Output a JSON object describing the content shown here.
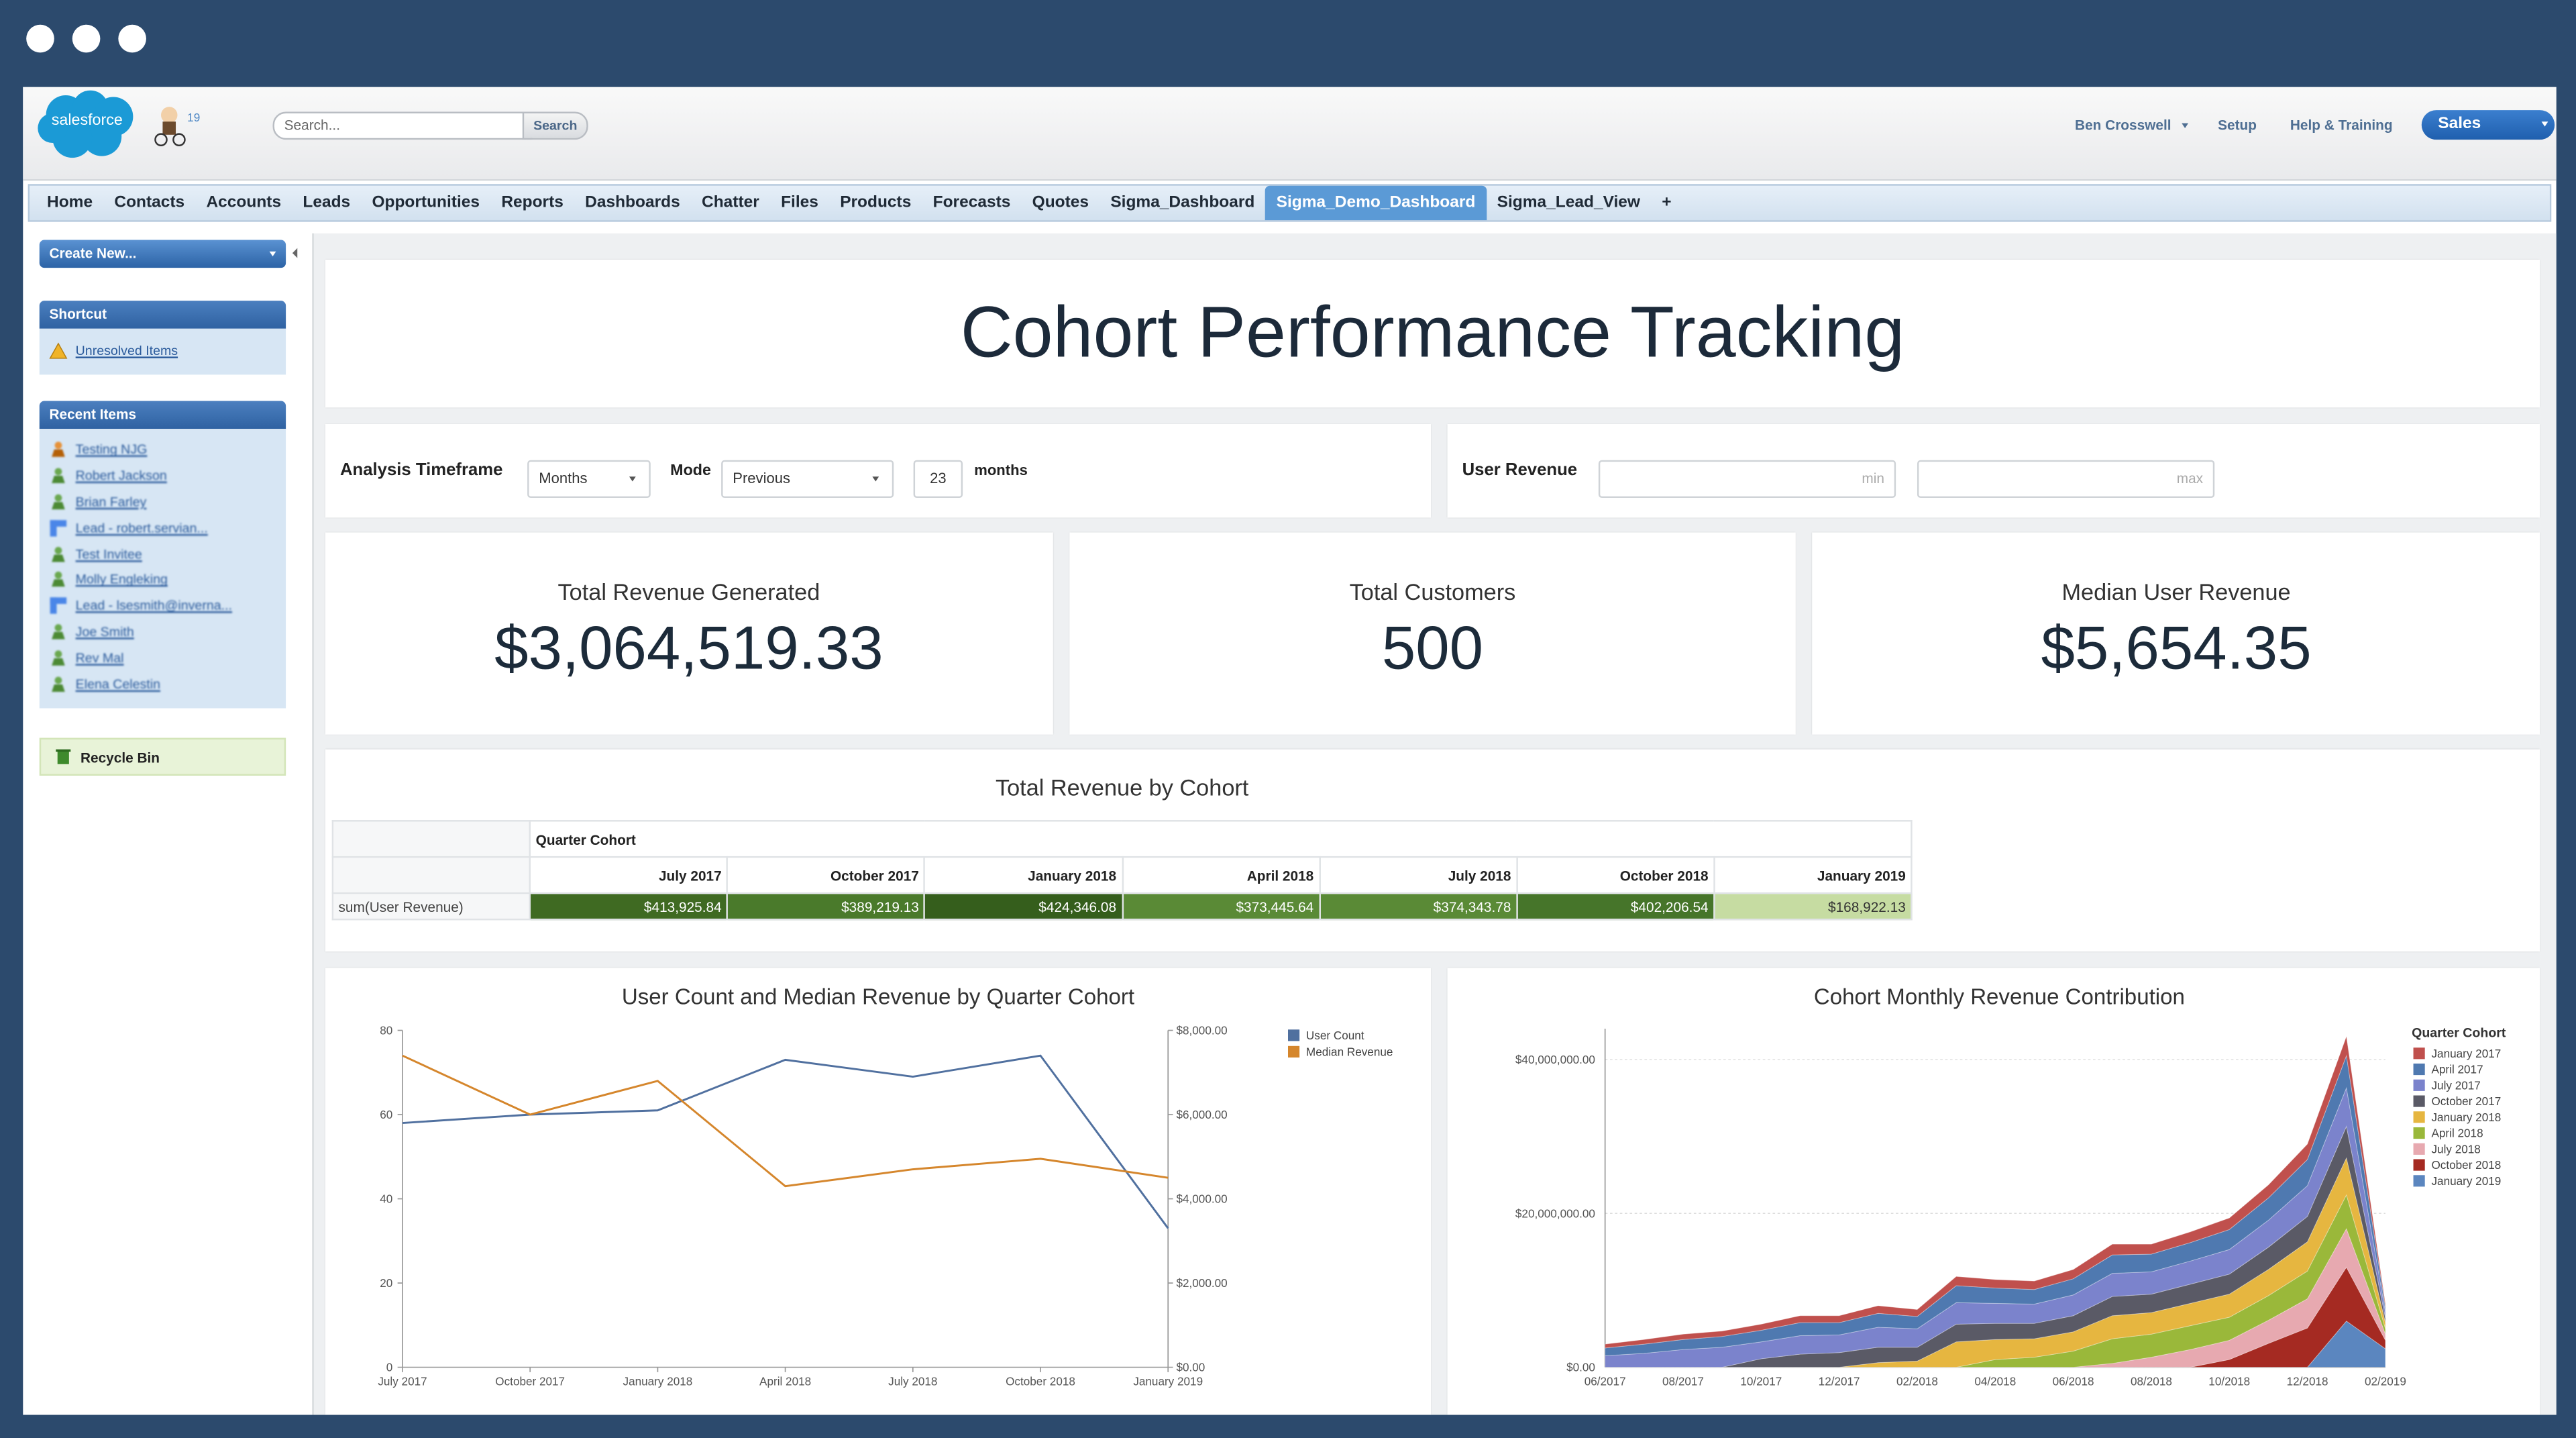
{
  "header": {
    "logo": "salesforce",
    "badge": "19",
    "search_placeholder": "Search...",
    "search_button": "Search",
    "user": "Ben Crosswell",
    "links": [
      "Setup",
      "Help & Training"
    ],
    "app": "Sales"
  },
  "tabs": {
    "items": [
      "Home",
      "Contacts",
      "Accounts",
      "Leads",
      "Opportunities",
      "Reports",
      "Dashboards",
      "Chatter",
      "Files",
      "Products",
      "Forecasts",
      "Quotes",
      "Sigma_Dashboard",
      "Sigma_Demo_Dashboard",
      "Sigma_Lead_View"
    ],
    "active": 13,
    "add": "+"
  },
  "sidebar": {
    "create_new": "Create New...",
    "shortcut": {
      "title": "Shortcut",
      "items": [
        "Unresolved Items"
      ]
    },
    "recent": {
      "title": "Recent Items",
      "items": [
        {
          "label": "Testing NJG",
          "icon": "task"
        },
        {
          "label": "Robert Jackson",
          "icon": "contact"
        },
        {
          "label": "Brian Farley",
          "icon": "contact"
        },
        {
          "label": "Lead - robert.servian...",
          "icon": "lead"
        },
        {
          "label": "Test Invitee",
          "icon": "contact"
        },
        {
          "label": "Molly Engleking",
          "icon": "contact"
        },
        {
          "label": "Lead - lsesmith@inverna...",
          "icon": "lead"
        },
        {
          "label": "Joe Smith",
          "icon": "contact"
        },
        {
          "label": "Rev Mal",
          "icon": "contact"
        },
        {
          "label": "Elena Celestin",
          "icon": "contact"
        }
      ]
    },
    "recycle_bin": "Recycle Bin"
  },
  "dashboard": {
    "title": "Cohort Performance Tracking",
    "filters": {
      "timeframe_label": "Analysis Timeframe",
      "unit": "Months",
      "mode_label": "Mode",
      "mode": "Previous",
      "count": "23",
      "count_unit": "months",
      "revenue_label": "User Revenue",
      "min_placeholder": "min",
      "max_placeholder": "max"
    },
    "kpis": [
      {
        "label": "Total Revenue Generated",
        "value": "$3,064,519.33"
      },
      {
        "label": "Total Customers",
        "value": "500"
      },
      {
        "label": "Median User Revenue",
        "value": "$5,654.35"
      }
    ],
    "pivot": {
      "title": "Total Revenue by Cohort",
      "column_header": "Quarter Cohort",
      "columns": [
        "July 2017",
        "October 2017",
        "January 2018",
        "April 2018",
        "July 2018",
        "October 2018",
        "January 2019"
      ],
      "row_label": "sum(User Revenue)",
      "cells": [
        "$413,925.84",
        "$389,219.13",
        "$424,346.08",
        "$373,445.64",
        "$374,343.78",
        "$402,206.54",
        "$168,922.13"
      ],
      "cell_colors": [
        "#3f6a22",
        "#4a7a2b",
        "#355e1c",
        "#5a8a36",
        "#5a8a36",
        "#46752a",
        "#c6dca2"
      ]
    }
  },
  "chart_data": [
    {
      "type": "line",
      "title": "User Count and Median Revenue by Quarter Cohort",
      "categories": [
        "July 2017",
        "October 2017",
        "January 2018",
        "April 2018",
        "July 2018",
        "October 2018",
        "January 2019"
      ],
      "series": [
        {
          "name": "User Count",
          "color": "#50709f",
          "values": [
            58,
            60,
            61,
            73,
            69,
            74,
            33
          ]
        },
        {
          "name": "Median Revenue",
          "color": "#d5862c",
          "axis": "y2",
          "values": [
            7400,
            6000,
            6800,
            4300,
            4700,
            4950,
            4500
          ]
        }
      ],
      "ylim": [
        0,
        80
      ],
      "yticks": [
        0,
        20,
        40,
        60,
        80
      ],
      "y2lim": [
        0,
        8000
      ],
      "y2ticks": [
        {
          "value": 0,
          "label": "$0.00"
        },
        {
          "value": 2000,
          "label": "$2,000.00"
        },
        {
          "value": 4000,
          "label": "$4,000.00"
        },
        {
          "value": 6000,
          "label": "$6,000.00"
        },
        {
          "value": 8000,
          "label": "$8,000.00"
        }
      ],
      "legend": "top-right"
    },
    {
      "type": "area",
      "stacked": true,
      "title": "Cohort Monthly Revenue Contribution",
      "legend_title": "Quarter Cohort",
      "categories": [
        "06/2017",
        null,
        "08/2017",
        null,
        "10/2017",
        null,
        "12/2017",
        null,
        "02/2018",
        null,
        "04/2018",
        null,
        "06/2018",
        null,
        "08/2018",
        null,
        "10/2018",
        null,
        "12/2018",
        null,
        "02/2019"
      ],
      "series": [
        {
          "name": "January 2017",
          "color": "#c0504d",
          "values": [
            500000,
            600000,
            700000,
            700000,
            800000,
            900000,
            900000,
            1000000,
            900000,
            1200000,
            1100000,
            1100000,
            1200000,
            1400000,
            1300000,
            1400000,
            1500000,
            1700000,
            2000000,
            2500000,
            400000
          ]
        },
        {
          "name": "April 2017",
          "color": "#4f79b0",
          "values": [
            1000000,
            1200000,
            1300000,
            1400000,
            1500000,
            1700000,
            1600000,
            1800000,
            1600000,
            2200000,
            2000000,
            1900000,
            2100000,
            2400000,
            2300000,
            2400000,
            2600000,
            2900000,
            3400000,
            4200000,
            600000
          ]
        },
        {
          "name": "July 2017",
          "color": "#7b83cc",
          "values": [
            1500000,
            1800000,
            2300000,
            2600000,
            2200000,
            2400000,
            2300000,
            2600000,
            2400000,
            2800000,
            2600000,
            2500000,
            2700000,
            3000000,
            2900000,
            3000000,
            3200000,
            3500000,
            4000000,
            5000000,
            800000
          ]
        },
        {
          "name": "October 2017",
          "color": "#5a5a66",
          "values": [
            0,
            0,
            0,
            0,
            1100000,
            1700000,
            1900000,
            2000000,
            1800000,
            2300000,
            2100000,
            2000000,
            2100000,
            2500000,
            2400000,
            2500000,
            2600000,
            2900000,
            3300000,
            4100000,
            600000
          ]
        },
        {
          "name": "January 2018",
          "color": "#e6b640",
          "values": [
            0,
            0,
            0,
            0,
            0,
            0,
            0,
            600000,
            800000,
            3300000,
            2600000,
            2400000,
            2500000,
            3000000,
            2800000,
            2900000,
            3000000,
            3400000,
            3800000,
            4800000,
            800000
          ]
        },
        {
          "name": "April 2018",
          "color": "#9ab83a",
          "values": [
            0,
            0,
            0,
            0,
            0,
            0,
            0,
            0,
            0,
            0,
            1000000,
            1300000,
            2100000,
            3200000,
            3000000,
            3100000,
            3000000,
            3200000,
            3600000,
            4400000,
            700000
          ]
        },
        {
          "name": "July 2018",
          "color": "#e7a9b0",
          "values": [
            0,
            0,
            0,
            0,
            0,
            0,
            0,
            0,
            0,
            0,
            0,
            0,
            0,
            500000,
            1300000,
            2300000,
            2500000,
            3000000,
            3800000,
            5000000,
            800000
          ]
        },
        {
          "name": "October 2018",
          "color": "#a52a22",
          "values": [
            0,
            0,
            0,
            0,
            0,
            0,
            0,
            0,
            0,
            0,
            0,
            0,
            0,
            0,
            0,
            0,
            1000000,
            3100000,
            5100000,
            7000000,
            1100000
          ]
        },
        {
          "name": "January 2019",
          "color": "#5b86bf",
          "values": [
            0,
            0,
            0,
            0,
            0,
            0,
            0,
            0,
            0,
            0,
            0,
            0,
            0,
            0,
            0,
            0,
            0,
            0,
            0,
            6000000,
            2400000
          ]
        }
      ],
      "ylim": [
        0,
        44000000
      ],
      "yticks": [
        {
          "value": 0,
          "label": "$0.00"
        },
        {
          "value": 20000000,
          "label": "$20,000,000.00"
        },
        {
          "value": 40000000,
          "label": "$40,000,000.00"
        }
      ],
      "grid": true,
      "legend": "right"
    }
  ]
}
